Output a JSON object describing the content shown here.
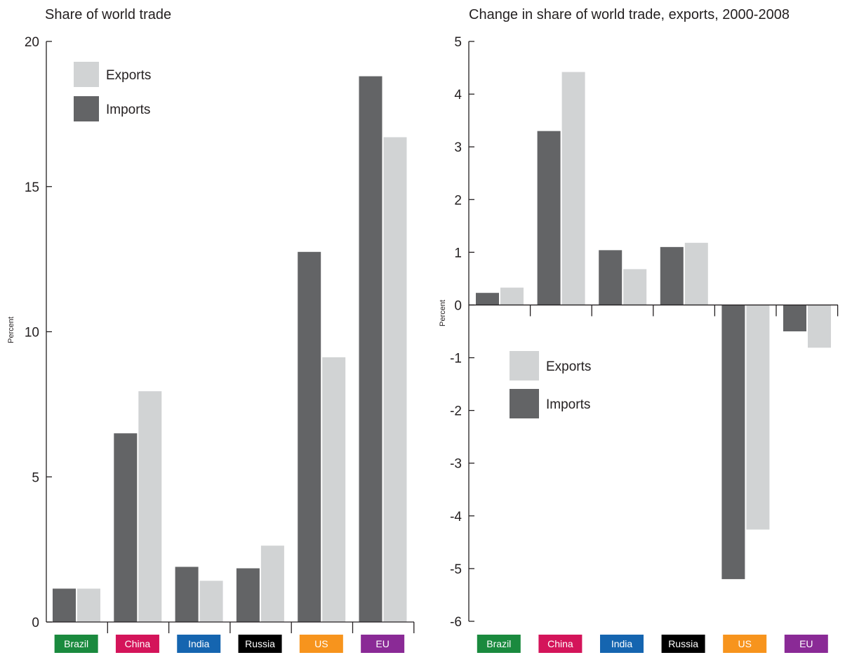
{
  "chart_data": [
    {
      "type": "bar",
      "title": "Share of world trade",
      "ylabel": "Percent",
      "ylim": [
        0,
        20
      ],
      "yticks": [
        0,
        5,
        10,
        15,
        20
      ],
      "categories": [
        "Brazil",
        "China",
        "India",
        "Russia",
        "US",
        "EU"
      ],
      "category_colors": [
        "#1a8a3e",
        "#d4145a",
        "#1565b0",
        "#000000",
        "#f7941d",
        "#8a2a96"
      ],
      "series": [
        {
          "name": "Imports",
          "color": "#636466",
          "values": [
            1.15,
            6.5,
            1.9,
            1.85,
            12.75,
            18.8
          ]
        },
        {
          "name": "Exports",
          "color": "#d1d3d4",
          "values": [
            1.15,
            7.95,
            1.42,
            2.63,
            9.12,
            16.7
          ]
        }
      ],
      "legend": {
        "placement": "top-left",
        "entries": [
          "Exports",
          "Imports"
        ]
      }
    },
    {
      "type": "bar",
      "title": "Change in share of world trade, exports, 2000-2008",
      "ylabel": "Percent",
      "ylim": [
        -6,
        5
      ],
      "yticks": [
        -6,
        -5,
        -4,
        -3,
        -2,
        -1,
        0,
        1,
        2,
        3,
        4,
        5
      ],
      "categories": [
        "Brazil",
        "China",
        "India",
        "Russia",
        "US",
        "EU"
      ],
      "category_colors": [
        "#1a8a3e",
        "#d4145a",
        "#1565b0",
        "#000000",
        "#f7941d",
        "#8a2a96"
      ],
      "series": [
        {
          "name": "Imports",
          "color": "#636466",
          "values": [
            0.23,
            3.3,
            1.04,
            1.1,
            -5.2,
            -0.5
          ]
        },
        {
          "name": "Exports",
          "color": "#d1d3d4",
          "values": [
            0.33,
            4.42,
            0.68,
            1.18,
            -4.26,
            -0.81
          ]
        }
      ],
      "legend": {
        "placement": "center-left",
        "entries": [
          "Exports",
          "Imports"
        ]
      }
    }
  ]
}
